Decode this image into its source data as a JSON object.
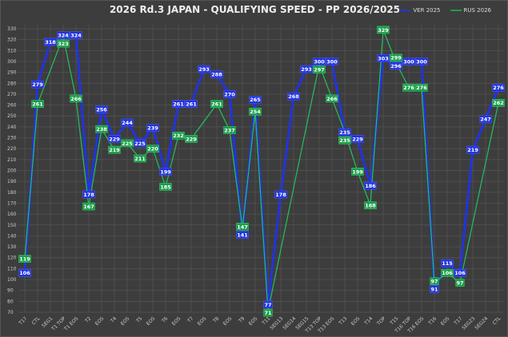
{
  "chart_data": {
    "type": "line",
    "title": "2026 Rd.3 JAPAN - QUALIFYING SPEED - PP 2026/2025",
    "xlabel": "",
    "ylabel": "",
    "ylim": [
      70,
      330
    ],
    "yticks": [
      70,
      80,
      90,
      100,
      110,
      120,
      130,
      140,
      150,
      160,
      170,
      180,
      190,
      200,
      210,
      220,
      230,
      240,
      250,
      260,
      270,
      280,
      290,
      300,
      310,
      320,
      330
    ],
    "grid": true,
    "legend": "top-right",
    "categories": [
      "T17",
      "CTL",
      "SEG1",
      "T1 TOP",
      "T1 EOS",
      "T2",
      "EOS",
      "T4",
      "EOS",
      "T5",
      "EOS",
      "T6",
      "EOS",
      "T7",
      "EOS",
      "T8",
      "EOS",
      "T9",
      "EOS",
      "T11",
      "SEG13",
      "SEG14",
      "SEG15",
      "T13 TOP",
      "T13 EOS",
      "T13",
      "EOS",
      "T14",
      "TOP",
      "T15",
      "T16 TOP",
      "T16 EOS",
      "T16",
      "EOS",
      "T17",
      "SEG23",
      "SEG24",
      "CTL"
    ],
    "series": [
      {
        "name": "VER 2025",
        "color": "#2233dd",
        "values": [
          106,
          279,
          318,
          324,
          324,
          178,
          256,
          229,
          244,
          225,
          239,
          199,
          261,
          261,
          293,
          288,
          270,
          141,
          265,
          77,
          178,
          268,
          293,
          300,
          300,
          235,
          229,
          186,
          303,
          296,
          300,
          300,
          91,
          115,
          106,
          219,
          247,
          276
        ]
      },
      {
        "name": "RUS 2026",
        "color": "#1a9e4a",
        "values": [
          119,
          261,
          null,
          323,
          266,
          167,
          238,
          219,
          225,
          211,
          220,
          185,
          232,
          229,
          null,
          261,
          237,
          147,
          254,
          71,
          null,
          null,
          null,
          297,
          266,
          235,
          199,
          168,
          329,
          299,
          276,
          276,
          97,
          106,
          97,
          null,
          null,
          262
        ]
      }
    ]
  }
}
